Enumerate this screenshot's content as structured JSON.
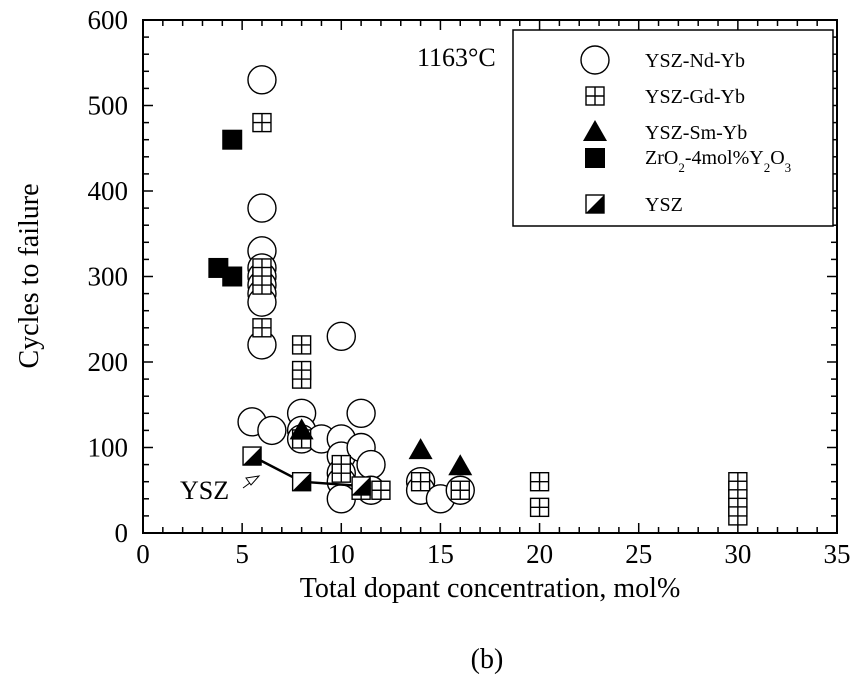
{
  "chart_data": {
    "type": "scatter",
    "title": "",
    "xlabel": "Total dopant concentration, mol%",
    "ylabel": "Cycles to failure",
    "xlim": [
      0,
      35
    ],
    "ylim": [
      0,
      600
    ],
    "x_ticks": [
      0,
      5,
      10,
      15,
      20,
      25,
      30,
      35
    ],
    "y_ticks": [
      0,
      100,
      200,
      300,
      400,
      500,
      600
    ],
    "grid": false,
    "legend_position": "top-right",
    "annotations": {
      "temperature": "1163°C",
      "ysz_arrow": "YSZ",
      "panel_label": "(b)"
    },
    "series": [
      {
        "name": "YSZ-Nd-Yb",
        "marker": "open-circle",
        "points": [
          [
            6,
            530
          ],
          [
            6,
            380
          ],
          [
            6,
            330
          ],
          [
            6,
            310
          ],
          [
            6,
            300
          ],
          [
            6,
            290
          ],
          [
            6,
            280
          ],
          [
            6,
            270
          ],
          [
            6,
            220
          ],
          [
            5.5,
            130
          ],
          [
            6.5,
            120
          ],
          [
            8,
            140
          ],
          [
            8,
            120
          ],
          [
            8,
            110
          ],
          [
            9,
            110
          ],
          [
            10,
            230
          ],
          [
            10,
            110
          ],
          [
            10,
            90
          ],
          [
            10,
            70
          ],
          [
            10,
            60
          ],
          [
            10,
            40
          ],
          [
            11,
            140
          ],
          [
            11,
            100
          ],
          [
            11.5,
            80
          ],
          [
            11.5,
            50
          ],
          [
            14,
            60
          ],
          [
            14,
            50
          ],
          [
            15,
            40
          ],
          [
            16,
            50
          ]
        ]
      },
      {
        "name": "YSZ-Gd-Yb",
        "marker": "square-crossed",
        "points": [
          [
            6,
            480
          ],
          [
            6,
            310
          ],
          [
            6,
            300
          ],
          [
            6,
            290
          ],
          [
            6,
            240
          ],
          [
            8,
            220
          ],
          [
            8,
            190
          ],
          [
            8,
            180
          ],
          [
            8,
            110
          ],
          [
            10,
            80
          ],
          [
            10,
            70
          ],
          [
            11,
            50
          ],
          [
            12,
            50
          ],
          [
            14,
            60
          ],
          [
            16,
            50
          ],
          [
            20,
            60
          ],
          [
            20,
            30
          ],
          [
            30,
            60
          ],
          [
            30,
            50
          ],
          [
            30,
            40
          ],
          [
            30,
            30
          ],
          [
            30,
            20
          ]
        ]
      },
      {
        "name": "YSZ-Sm-Yb",
        "marker": "filled-triangle",
        "points": [
          [
            8,
            120
          ],
          [
            14,
            97
          ],
          [
            16,
            78
          ]
        ]
      },
      {
        "name": "ZrO2-4mol%Y2O3",
        "marker": "filled-square",
        "points": [
          [
            4.5,
            460
          ],
          [
            3.8,
            310
          ],
          [
            4.5,
            300
          ]
        ]
      },
      {
        "name": "YSZ",
        "marker": "half-filled-square",
        "connected": true,
        "points": [
          [
            5.5,
            90
          ],
          [
            8,
            60
          ],
          [
            11,
            55
          ]
        ]
      }
    ]
  }
}
